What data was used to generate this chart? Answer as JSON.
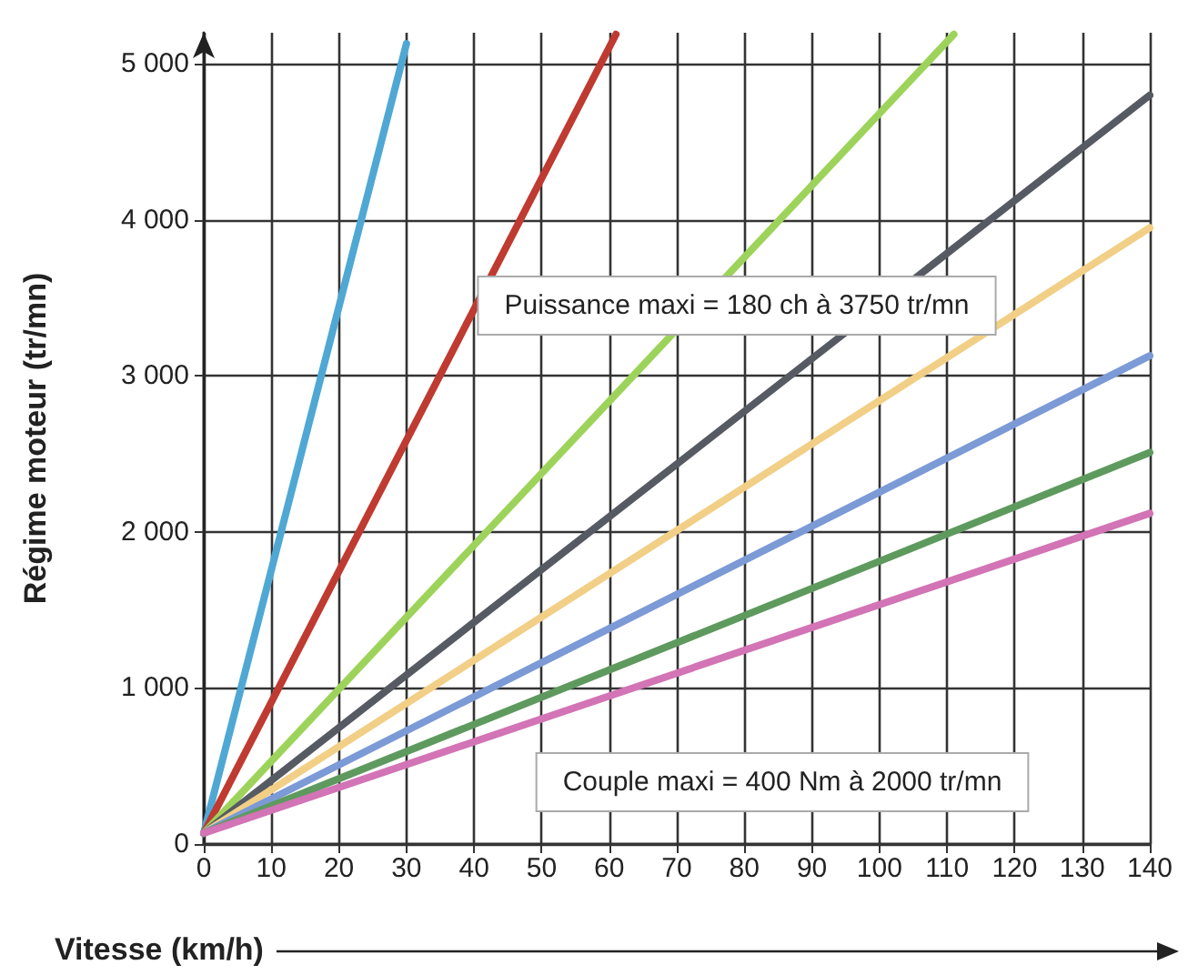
{
  "chart_data": {
    "type": "line",
    "xlabel": "Vitesse (km/h)",
    "ylabel": "Régime moteur (tr/mn)",
    "xlim": [
      0,
      140
    ],
    "xticks": [
      0,
      10,
      20,
      30,
      40,
      50,
      60,
      70,
      80,
      90,
      100,
      110,
      120,
      130,
      140
    ],
    "ylim": [
      0,
      5200
    ],
    "yticks": [
      0,
      {
        "value": 1000,
        "label": "1 000"
      },
      {
        "value": 2000,
        "label": "2 000"
      },
      {
        "value": 3000,
        "label": "3 000"
      },
      {
        "value": 4000,
        "label": "4 000"
      },
      {
        "value": 5000,
        "label": "5 000"
      }
    ],
    "grid": true,
    "marker": "none",
    "line_style": "solid",
    "series": [
      {
        "color": "#4fa8d4",
        "x": [
          0,
          30
        ],
        "values": [
          70,
          5130
        ]
      },
      {
        "color": "#bf3a30",
        "x": [
          0,
          61
        ],
        "values": [
          70,
          5190
        ]
      },
      {
        "color": "#9dd35a",
        "x": [
          0,
          111
        ],
        "values": [
          70,
          5190
        ]
      },
      {
        "color": "#565a63",
        "x": [
          0,
          140
        ],
        "values": [
          70,
          4800
        ]
      },
      {
        "color": "#f2cf86",
        "x": [
          0,
          140
        ],
        "values": [
          70,
          3950
        ]
      },
      {
        "color": "#7b9ad6",
        "x": [
          0,
          140
        ],
        "values": [
          70,
          3130
        ]
      },
      {
        "color": "#5e9a5e",
        "x": [
          0,
          140
        ],
        "values": [
          70,
          2510
        ]
      },
      {
        "color": "#d274b5",
        "x": [
          0,
          140
        ],
        "values": [
          70,
          2120
        ]
      }
    ],
    "annotations": [
      "Puissance maxi = 180 ch à 3750 tr/mn",
      "Couple maxi = 400 Nm à 2000 tr/mn"
    ]
  }
}
